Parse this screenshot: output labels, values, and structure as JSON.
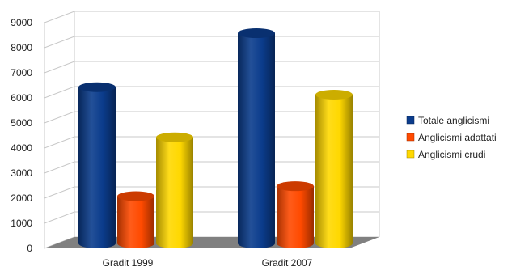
{
  "chart_data": {
    "type": "bar",
    "style": "3d-cylinder",
    "categories": [
      "Gradit 1999",
      "Gradit 2007"
    ],
    "series": [
      {
        "name": "Totale anglicismi",
        "values": [
          6300,
          8450
        ],
        "color": "#0b3c8c"
      },
      {
        "name": "Anglicismi adattati",
        "values": [
          1950,
          2350
        ],
        "color": "#ff4a00"
      },
      {
        "name": "Anglicismi crudi",
        "values": [
          4300,
          6000
        ],
        "color": "#ffd800"
      }
    ],
    "ylim": [
      0,
      9000
    ],
    "yticks": [
      "0",
      "1000",
      "2000",
      "3000",
      "4000",
      "5000",
      "6000",
      "7000",
      "8000",
      "9000"
    ],
    "grid": true,
    "legend_position": "right",
    "floor_color": "#808080"
  }
}
